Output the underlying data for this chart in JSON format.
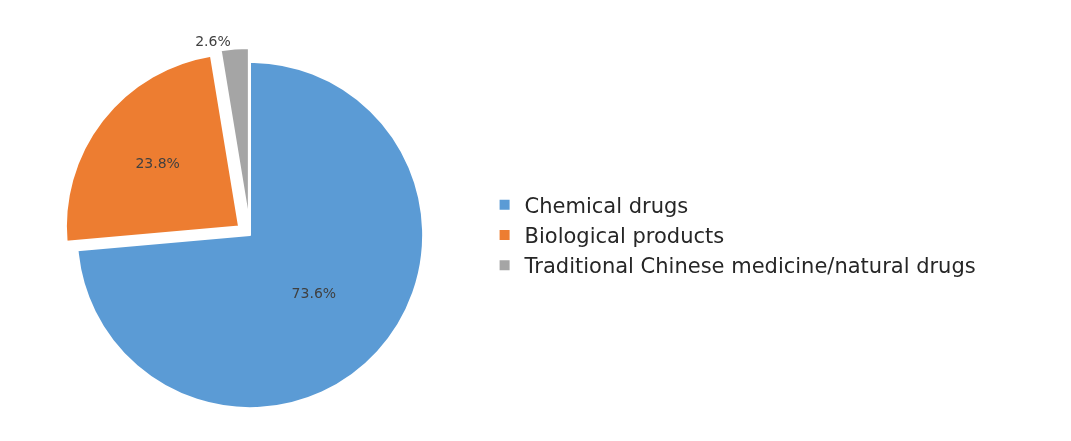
{
  "chart_data": {
    "type": "pie",
    "categories": [
      "Chemical drugs",
      "Biological products",
      "Traditional Chinese medicine/natural drugs"
    ],
    "values": [
      73.6,
      23.8,
      2.6
    ],
    "value_labels": [
      "73.6%",
      "23.8%",
      "2.6%"
    ],
    "colors": [
      "#5b9bd5",
      "#ed7d31",
      "#a5a5a5"
    ],
    "legend": "right"
  }
}
